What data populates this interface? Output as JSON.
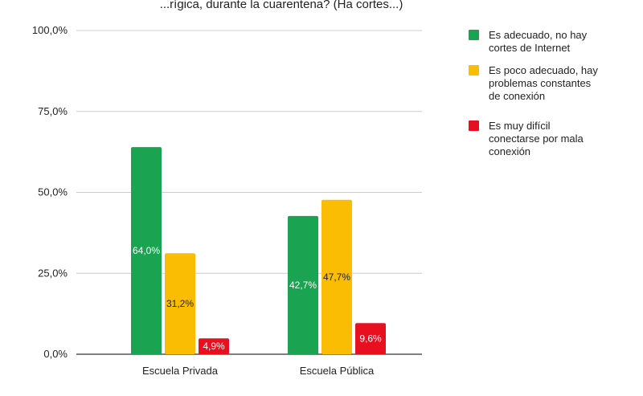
{
  "chart_data": {
    "type": "bar",
    "title": "...rígica, durante la cuarentena? (Ha cortes...)",
    "categories": [
      "Escuela Privada",
      "Escuela Pública"
    ],
    "series": [
      {
        "name": "Es adecuado, no hay cortes de Internet",
        "legend_lines": [
          "Es adecuado, no hay",
          "cortes de Internet"
        ],
        "color": "#1aa350",
        "label_color": "#ffffff",
        "values": [
          64.0,
          42.7
        ],
        "labels": [
          "64,0%",
          "42,7%"
        ]
      },
      {
        "name": "Es poco adecuado, hay problemas constantes de conexión",
        "legend_lines": [
          "Es poco adecuado, hay",
          "problemas constantes",
          "de conexión"
        ],
        "color": "#fbbc04",
        "label_color": "#222222",
        "values": [
          31.2,
          47.7
        ],
        "labels": [
          "31,2%",
          "47,7%"
        ]
      },
      {
        "name": "Es muy difícil conectarse por mala conexión",
        "legend_lines": [
          "Es muy difícil",
          "conectarse por mala",
          "conexión"
        ],
        "color": "#e8101e",
        "label_color": "#ffffff",
        "values": [
          4.9,
          9.6
        ],
        "labels": [
          "4,9%",
          "9,6%"
        ]
      }
    ],
    "yticks": [
      0,
      25,
      50,
      75,
      100
    ],
    "ytick_labels": [
      "0,0%",
      "25,0%",
      "50,0%",
      "75,0%",
      "100,0%"
    ],
    "ylim": [
      0,
      100
    ],
    "grid": true,
    "legend_position": "right"
  }
}
